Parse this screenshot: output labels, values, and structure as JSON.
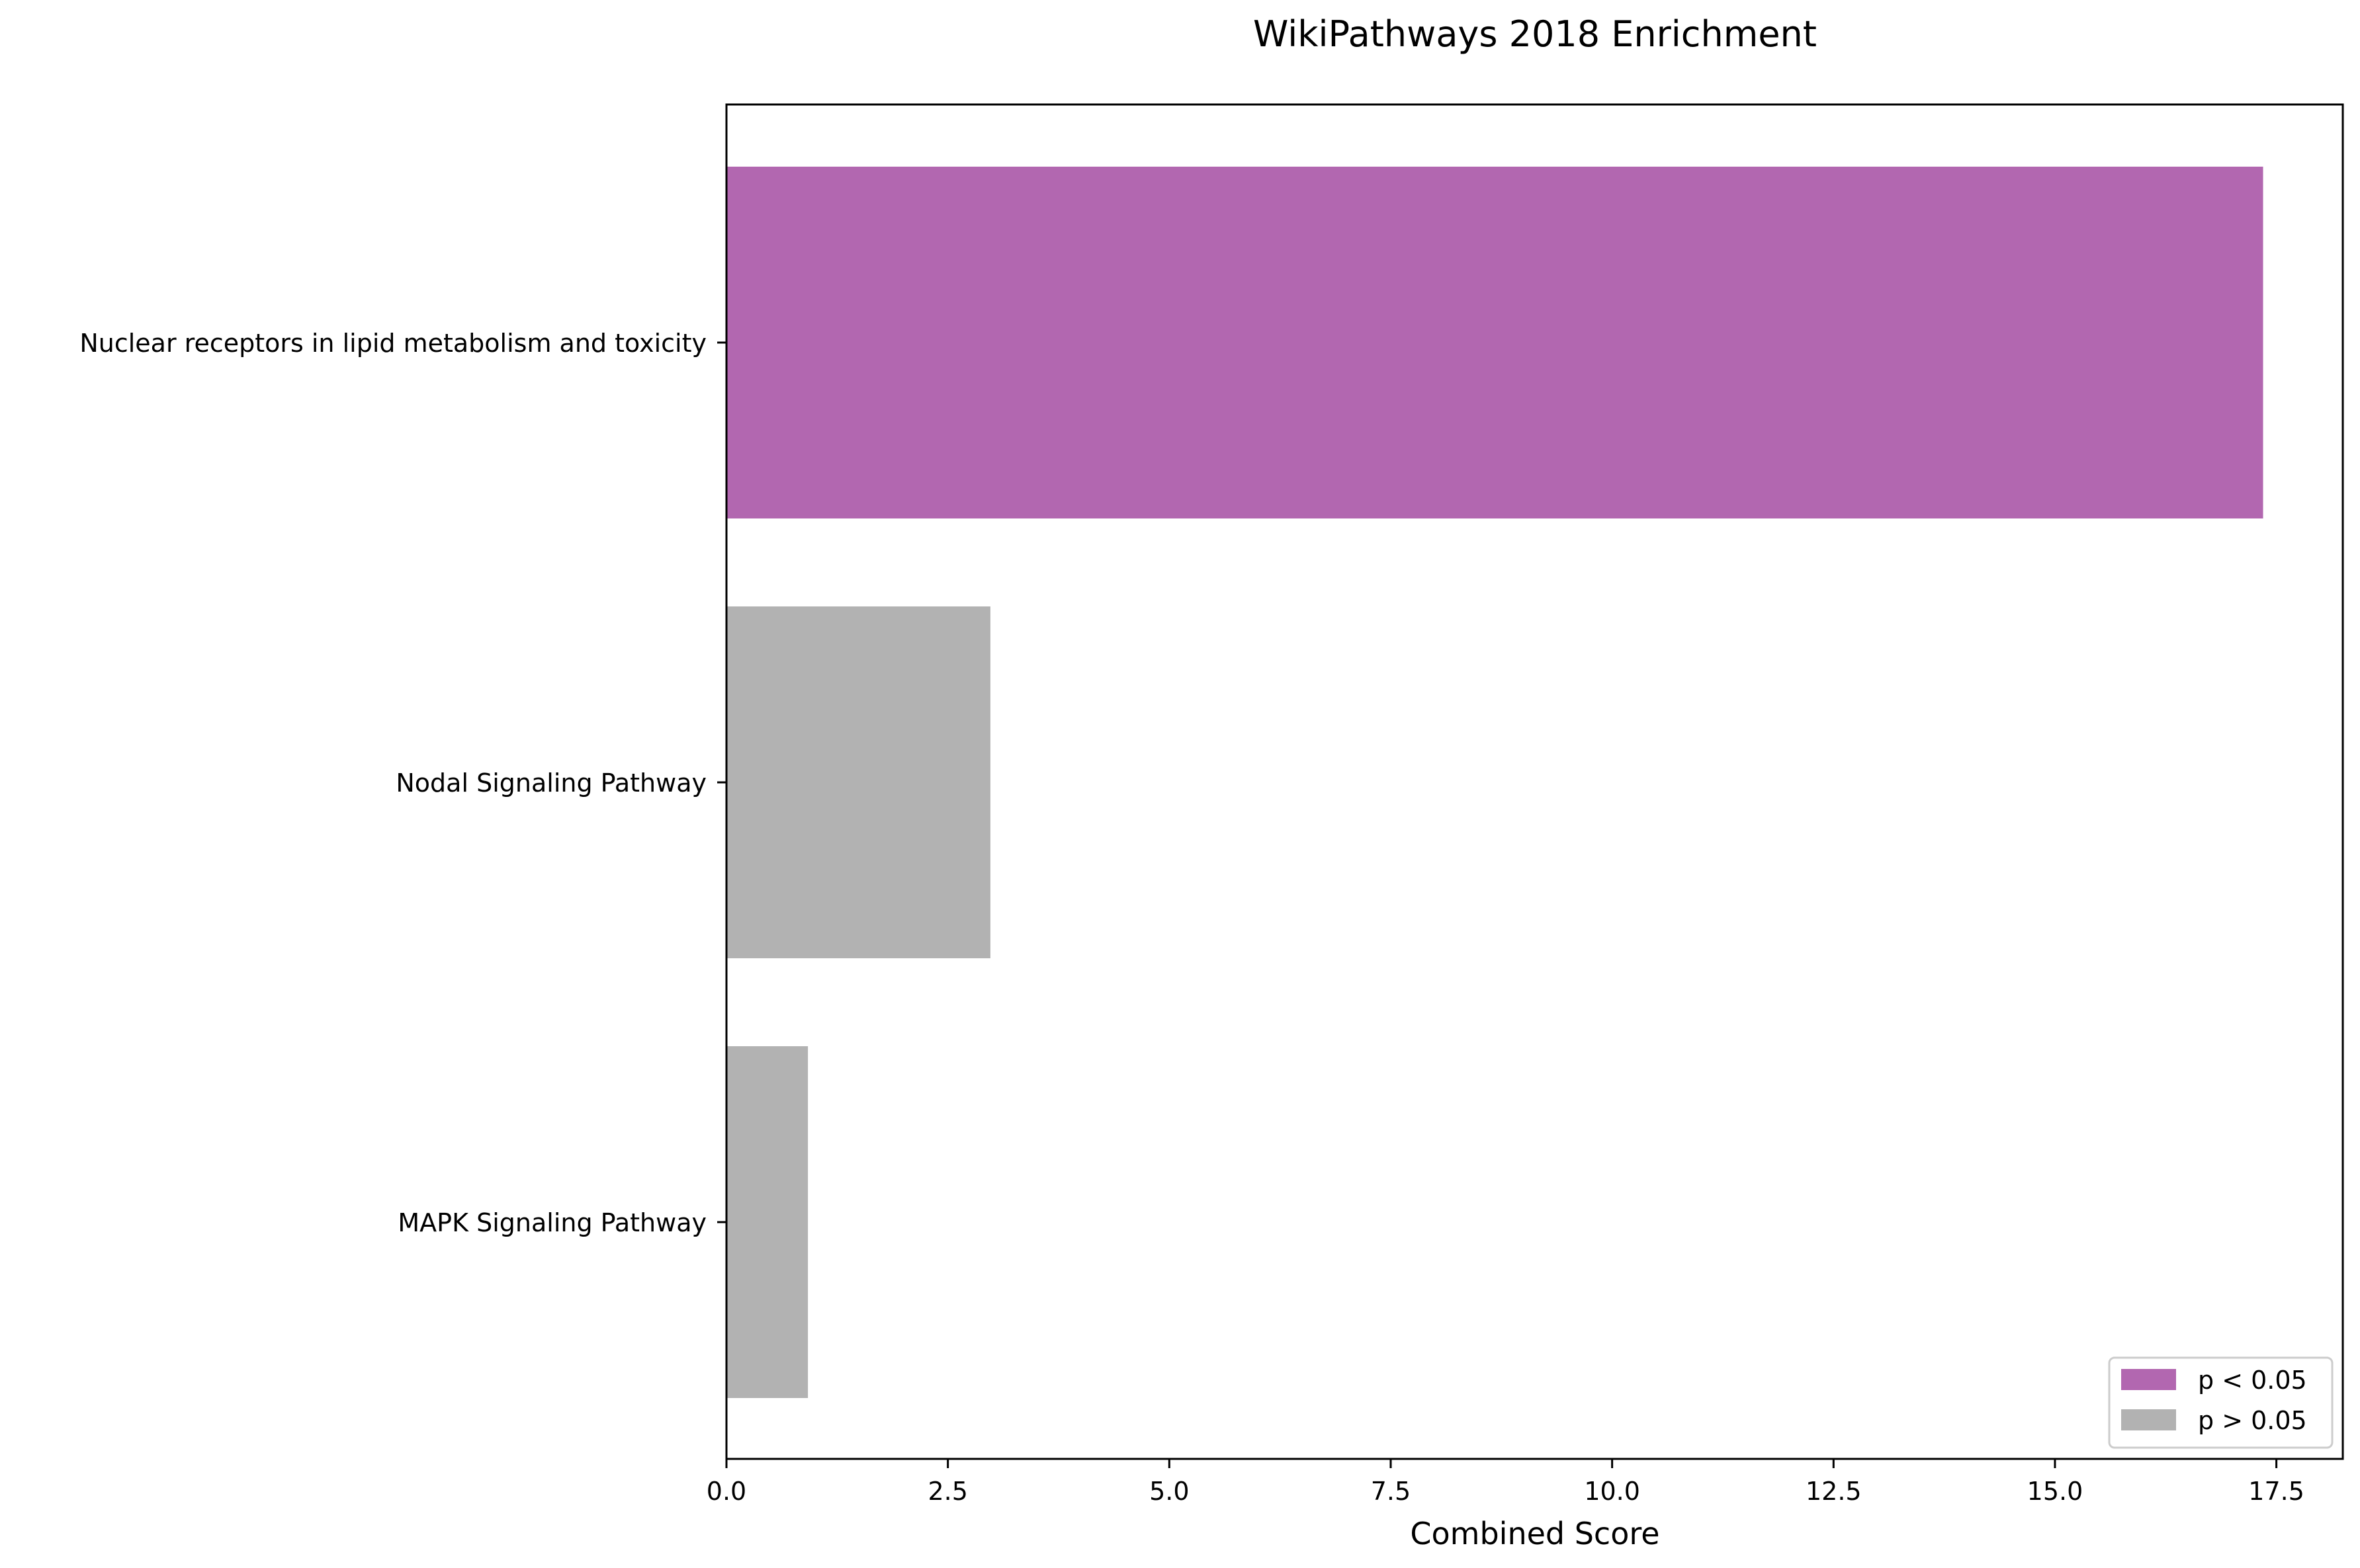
{
  "chart_data": {
    "type": "bar",
    "orientation": "horizontal",
    "title": "WikiPathways 2018 Enrichment",
    "xlabel": "Combined Score",
    "ylabel": "",
    "categories": [
      "Nuclear receptors in lipid metabolism and toxicity",
      "Nodal Signaling Pathway",
      "MAPK Signaling Pathway"
    ],
    "values": [
      17.35,
      2.98,
      0.92
    ],
    "bar_groups": [
      "p < 0.05",
      "p > 0.05",
      "p > 0.05"
    ],
    "xlim": [
      0,
      18.25
    ],
    "xticks": [
      0.0,
      2.5,
      5.0,
      7.5,
      10.0,
      12.5,
      15.0,
      17.5
    ],
    "xtick_labels": [
      "0.0",
      "2.5",
      "5.0",
      "7.5",
      "10.0",
      "12.5",
      "15.0",
      "17.5"
    ],
    "grid": false,
    "legend": {
      "position": "lower right",
      "entries": [
        {
          "label": "p < 0.05",
          "color": "#b267b0"
        },
        {
          "label": "p > 0.05",
          "color": "#b2b2b2"
        }
      ]
    },
    "colors": {
      "significant": "#b267b0",
      "not_significant": "#b2b2b2"
    }
  }
}
